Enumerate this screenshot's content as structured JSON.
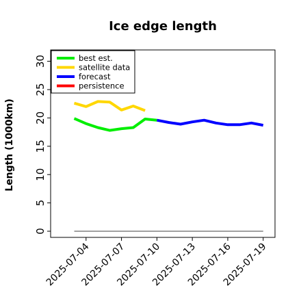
{
  "chart_data": {
    "type": "line",
    "title": "Ice edge length",
    "xlabel": "",
    "ylabel": "Length (1000km)",
    "ylim": [
      0,
      32
    ],
    "yticks": [
      0,
      5,
      10,
      15,
      20,
      25,
      30
    ],
    "xlim": [
      "2025-07-01",
      "2025-07-20"
    ],
    "xticks": [
      "2025-07-04",
      "2025-07-07",
      "2025-07-10",
      "2025-07-13",
      "2025-07-16",
      "2025-07-19"
    ],
    "highlight_tick": "2025-07-10",
    "highlight_color": "#228b22",
    "legend_position": "upper-left",
    "grid": false,
    "baseline": {
      "value": 0,
      "color": "#808080",
      "x": [
        "2025-07-03",
        "2025-07-19"
      ]
    },
    "series": [
      {
        "name": "best est.",
        "color": "#00ee00",
        "x": [
          "2025-07-03",
          "2025-07-04",
          "2025-07-05",
          "2025-07-06",
          "2025-07-07",
          "2025-07-08",
          "2025-07-09",
          "2025-07-10"
        ],
        "values": [
          19.9,
          19.0,
          18.3,
          17.8,
          18.1,
          18.3,
          19.8,
          19.6
        ]
      },
      {
        "name": "satellite data",
        "color": "#ffd700",
        "x": [
          "2025-07-03",
          "2025-07-04",
          "2025-07-05",
          "2025-07-06",
          "2025-07-07",
          "2025-07-08",
          "2025-07-09"
        ],
        "values": [
          22.6,
          22.0,
          22.9,
          22.8,
          21.4,
          22.1,
          21.3
        ]
      },
      {
        "name": "forecast",
        "color": "#0000ff",
        "x": [
          "2025-07-10",
          "2025-07-11",
          "2025-07-12",
          "2025-07-13",
          "2025-07-14",
          "2025-07-15",
          "2025-07-16",
          "2025-07-17",
          "2025-07-18",
          "2025-07-19"
        ],
        "values": [
          19.6,
          19.2,
          18.9,
          19.3,
          19.6,
          19.1,
          18.8,
          18.8,
          19.1,
          18.7
        ]
      },
      {
        "name": "persistence",
        "color": "#ff0000",
        "x": [],
        "values": []
      }
    ]
  }
}
